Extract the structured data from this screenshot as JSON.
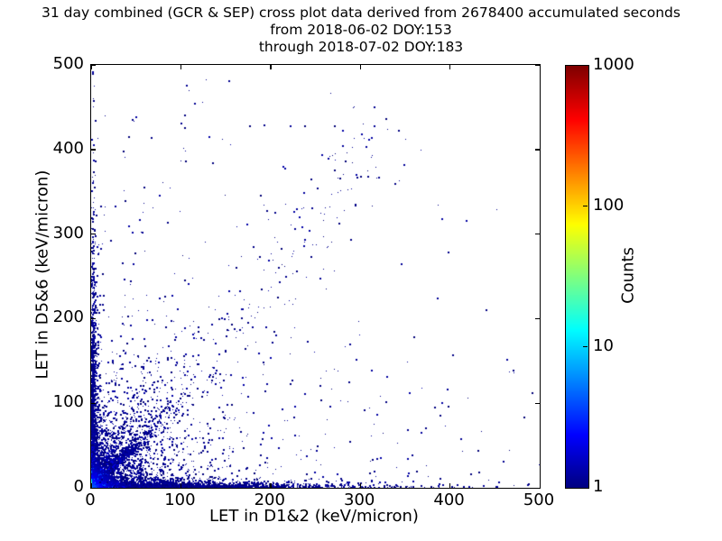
{
  "figure": {
    "background": "#ffffff"
  },
  "chart_data": {
    "type": "scatter",
    "title": "31 day combined (GCR & SEP) cross plot data derived from 2678400 accumulated seconds",
    "subtitle_line1": "from 2018-06-02 DOY:153",
    "subtitle_line2": "through 2018-07-02 DOY:183",
    "accumulated_seconds": 2678400,
    "date_start": "2018-06-02",
    "doy_start": 153,
    "date_end": "2018-07-02",
    "doy_end": 183,
    "xlabel": "LET in D1&2 (keV/micron)",
    "ylabel": "LET in D5&6 (keV/micron)",
    "xlim": [
      0,
      500
    ],
    "ylim": [
      0,
      500
    ],
    "xticks": [
      0,
      100,
      200,
      300,
      400,
      500
    ],
    "yticks": [
      0,
      100,
      200,
      300,
      400,
      500
    ],
    "grid": false,
    "marker_shape": "square-pixel",
    "colorbar": {
      "label": "Counts",
      "scale": "log",
      "min": 1,
      "max": 1000,
      "ticks": [
        1,
        10,
        100,
        1000
      ],
      "colormap": "jet",
      "color_low": "#00007f",
      "color_high": "#7f0000"
    },
    "density_model": {
      "comment": "procedural description of the 2D histogram content: hot (red/orange/yellow) core at the origin, dense blue bands hugging both axes, a dense diagonal streak near y=x from the origin, a fainter steeper streak, a sparse diagonal cloud toward (320,430), and isolated navy counts scattered over the field",
      "seed": 20180602,
      "point_color_floor": "#000078",
      "clusters": [
        {
          "name": "origin-hot-core",
          "kind": "expexp",
          "n": 3500,
          "mx": 4,
          "my": 4,
          "color": {
            "type": "radial",
            "amp": 1.0,
            "scale": 7
          }
        },
        {
          "name": "x-axis-band",
          "kind": "expexp",
          "n": 3200,
          "mx": 85,
          "my": 2.6,
          "color": {
            "type": "field",
            "amp": 0.55,
            "cx": 25,
            "cy": 6
          }
        },
        {
          "name": "y-axis-band",
          "kind": "expexp",
          "n": 1600,
          "mx": 2.2,
          "my": 95,
          "color": {
            "type": "field",
            "amp": 0.55,
            "cx": 6,
            "cy": 25
          }
        },
        {
          "name": "main-diagonal-streak",
          "kind": "diag",
          "n": 1100,
          "tau": 30,
          "jitter": 0.06,
          "slopes": [
            1.0,
            1.0,
            1.0,
            1.2
          ],
          "color": {
            "type": "field",
            "amp": 0.5,
            "cx": 30,
            "cy": 30
          }
        },
        {
          "name": "steep-diagonal-streak",
          "kind": "diag",
          "n": 300,
          "tau": 26,
          "jitter": 0.08,
          "slopes": [
            2.0
          ],
          "color": {
            "type": "field",
            "amp": 0.4,
            "cx": 30,
            "cy": 30
          }
        },
        {
          "name": "lower-left-cloud",
          "kind": "expexp",
          "n": 1700,
          "mx": 33,
          "my": 33,
          "color": {
            "type": "field",
            "amp": 0.25,
            "cx": 18,
            "cy": 18
          }
        },
        {
          "name": "mid-diagonal-band",
          "kind": "band",
          "n": 230,
          "x0": 55,
          "y0": 45,
          "x1": 320,
          "y1": 430,
          "sx": 30,
          "sy": 32,
          "color": {
            "type": "flat"
          }
        },
        {
          "name": "sparse-field",
          "kind": "expexp",
          "n": 600,
          "mx": 150,
          "my": 115,
          "color": {
            "type": "flat"
          }
        },
        {
          "name": "upper-sprinkle",
          "kind": "uniform",
          "n": 22,
          "x0": 5,
          "x1": 460,
          "y0": 250,
          "y1": 495,
          "color": {
            "type": "flat"
          }
        }
      ]
    }
  }
}
